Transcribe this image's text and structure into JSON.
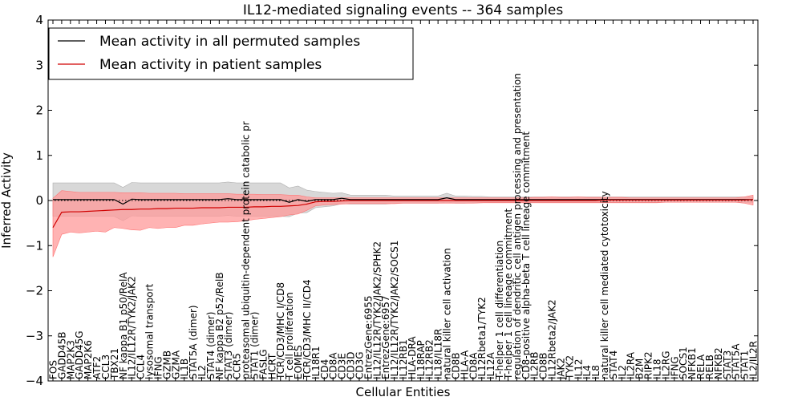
{
  "chart_data": {
    "type": "line",
    "title": "IL12-mediated signaling events -- 364 samples",
    "xlabel": "Cellular Entities",
    "ylabel": "Inferred Activity",
    "ylim": [
      -4,
      4
    ],
    "yticks": [
      -4,
      -3,
      -2,
      -1,
      0,
      1,
      2,
      3,
      4
    ],
    "legend_position": "top-left",
    "categories": [
      "FOS",
      "GADD45B",
      "MAP2K3",
      "GADD45G",
      "MAP2K6",
      "ATF2",
      "CCL3",
      "TBX21",
      "NF kappa B1 p50/RelA",
      "IL12/IL12R/TYK2/JAK2",
      "CCL4",
      "lysosomal transport",
      "IFNG",
      "GZMB",
      "GZMA",
      "IL1B",
      "STAT5A (dimer)",
      "IL2",
      "STAT4 (dimer)",
      "NF kappa B2 p52/RelB",
      "STAT3 (dimer)",
      "CCR5",
      "proteasomal ubiquitin-dependent protein catabolic pr",
      "STAT1 (dimer)",
      "FASLG",
      "HCRT",
      "TCR/CD3/MHC I/CD8",
      "T cell proliferation",
      "EOMES",
      "TCR/CD3/MHC II/CD4",
      "IL18R1",
      "CD4",
      "CD8A",
      "CD3E",
      "CD3D",
      "CD3G",
      "EntrezGene:6955",
      "IL12/IL12R/TYK2/JAK2/SPHK2",
      "EntrezGene:6957",
      "IL12/IL12R/TYK2/JAK2/SOCS1",
      "IL12RB1",
      "HLA-DRA",
      "IL18RAP",
      "IL12RB2",
      "IL18/IL18R",
      "natural killer cell activation",
      "CD8B",
      "HLA-A",
      "CD8A",
      "IL12Rbeta1/TYK2",
      "IL12A",
      "T-helper 1 cell differentiation",
      "T-helper 1 cell lineage commitment",
      "regulation of dendritic cell antigen processing and presentation",
      "CD8-positive alpha-beta T cell lineage commitment",
      "IL2RB",
      "CD8B",
      "IL12Rbeta2/JAK2",
      "JAK2",
      "TYK2",
      "IL12",
      "IL4",
      "IL8",
      "natural killer cell mediated cytotoxicity",
      "STAT4",
      "IL2",
      "IL2RA",
      "B2M",
      "RIPK2",
      "IL18",
      "IL2RG",
      "IFNG",
      "SOCS1",
      "NFKB1",
      "RELA",
      "RELB",
      "NFKB2",
      "STAT3",
      "STAT5A",
      "STAT1",
      "IL2/IL2R"
    ],
    "series": [
      {
        "name": "Mean activity in all permuted samples",
        "color": "#000000",
        "band_color": "#c8c8c8",
        "values": [
          0.02,
          0.02,
          0.02,
          0.02,
          0.02,
          0.02,
          0.02,
          0.02,
          -0.08,
          0.03,
          0.02,
          0.02,
          0.02,
          0.02,
          0.02,
          0.02,
          0.02,
          0.02,
          0.02,
          0.02,
          0.04,
          0.02,
          0.02,
          0.02,
          0.02,
          0.02,
          0.02,
          -0.04,
          0.02,
          -0.02,
          0.02,
          0.02,
          0.02,
          0.05,
          0.02,
          0.02,
          0.02,
          0.02,
          0.02,
          0.02,
          0.02,
          0.02,
          0.02,
          0.02,
          0.02,
          0.06,
          0.02,
          0.02,
          0.02,
          0.02,
          0.02,
          0.02,
          0.02,
          0.02,
          0.02,
          0.02,
          0.02,
          0.02,
          0.02,
          0.02,
          0.02,
          0.02,
          0.02,
          0.02,
          0.02,
          0.02,
          0.02,
          0.02,
          0.02,
          0.02,
          0.02,
          0.02,
          0.02,
          0.02,
          0.02,
          0.02,
          0.02,
          0.02,
          0.02,
          0.02,
          0.02
        ],
        "band_half_width": [
          0.37,
          0.37,
          0.37,
          0.37,
          0.37,
          0.37,
          0.37,
          0.37,
          0.37,
          0.37,
          0.37,
          0.37,
          0.37,
          0.37,
          0.37,
          0.37,
          0.37,
          0.37,
          0.37,
          0.37,
          0.37,
          0.37,
          0.37,
          0.37,
          0.37,
          0.37,
          0.37,
          0.32,
          0.3,
          0.25,
          0.18,
          0.16,
          0.14,
          0.12,
          0.1,
          0.1,
          0.1,
          0.1,
          0.1,
          0.08,
          0.08,
          0.08,
          0.08,
          0.08,
          0.08,
          0.1,
          0.08,
          0.08,
          0.07,
          0.07,
          0.06,
          0.06,
          0.06,
          0.06,
          0.06,
          0.06,
          0.06,
          0.06,
          0.06,
          0.06,
          0.06,
          0.06,
          0.06,
          0.06,
          0.06,
          0.06,
          0.06,
          0.06,
          0.06,
          0.06,
          0.06,
          0.06,
          0.06,
          0.06,
          0.06,
          0.06,
          0.06,
          0.06,
          0.06,
          0.06,
          0.06
        ]
      },
      {
        "name": "Mean activity in patient samples",
        "color": "#d00000",
        "band_color": "#ff9a9a",
        "values": [
          -0.6,
          -0.26,
          -0.25,
          -0.25,
          -0.24,
          -0.23,
          -0.22,
          -0.21,
          -0.2,
          -0.2,
          -0.19,
          -0.19,
          -0.18,
          -0.18,
          -0.17,
          -0.17,
          -0.17,
          -0.16,
          -0.16,
          -0.16,
          -0.15,
          -0.15,
          -0.15,
          -0.14,
          -0.14,
          -0.13,
          -0.13,
          -0.12,
          -0.11,
          -0.08,
          -0.03,
          -0.02,
          -0.02,
          -0.01,
          0.0,
          0.0,
          0.0,
          0.0,
          0.0,
          0.0,
          0.0,
          0.0,
          0.0,
          0.0,
          0.0,
          0.0,
          0.0,
          0.0,
          0.0,
          0.0,
          0.0,
          0.0,
          0.0,
          0.0,
          0.0,
          0.0,
          0.0,
          0.0,
          0.0,
          0.0,
          0.0,
          0.0,
          0.0,
          0.01,
          0.01,
          0.01,
          0.01,
          0.01,
          0.01,
          0.01,
          0.01,
          0.01,
          0.01,
          0.01,
          0.01,
          0.01,
          0.01,
          0.01,
          0.01,
          0.01,
          0.02
        ],
        "band_lower": [
          -1.25,
          -0.75,
          -0.7,
          -0.72,
          -0.7,
          -0.68,
          -0.7,
          -0.6,
          -0.62,
          -0.65,
          -0.66,
          -0.6,
          -0.62,
          -0.6,
          -0.6,
          -0.55,
          -0.55,
          -0.52,
          -0.5,
          -0.48,
          -0.48,
          -0.47,
          -0.45,
          -0.42,
          -0.4,
          -0.38,
          -0.36,
          -0.32,
          -0.3,
          -0.22,
          -0.12,
          -0.1,
          -0.09,
          -0.08,
          -0.07,
          -0.07,
          -0.07,
          -0.07,
          -0.07,
          -0.07,
          -0.06,
          -0.06,
          -0.06,
          -0.06,
          -0.06,
          -0.06,
          -0.06,
          -0.06,
          -0.06,
          -0.05,
          -0.05,
          -0.05,
          -0.05,
          -0.05,
          -0.05,
          -0.05,
          -0.05,
          -0.05,
          -0.05,
          -0.05,
          -0.05,
          -0.05,
          -0.05,
          -0.05,
          -0.05,
          -0.05,
          -0.05,
          -0.05,
          -0.05,
          -0.05,
          -0.04,
          -0.04,
          -0.04,
          -0.04,
          -0.04,
          -0.04,
          -0.04,
          -0.04,
          -0.04,
          -0.06,
          -0.1
        ],
        "band_upper": [
          0.05,
          0.22,
          0.2,
          0.18,
          0.18,
          0.18,
          0.18,
          0.18,
          0.17,
          0.17,
          0.17,
          0.16,
          0.16,
          0.16,
          0.16,
          0.15,
          0.15,
          0.15,
          0.15,
          0.15,
          0.15,
          0.14,
          0.14,
          0.14,
          0.13,
          0.13,
          0.13,
          0.12,
          0.12,
          0.08,
          0.06,
          0.06,
          0.06,
          0.06,
          0.06,
          0.06,
          0.06,
          0.06,
          0.06,
          0.06,
          0.06,
          0.06,
          0.06,
          0.06,
          0.06,
          0.06,
          0.06,
          0.06,
          0.06,
          0.06,
          0.06,
          0.06,
          0.06,
          0.06,
          0.06,
          0.07,
          0.07,
          0.08,
          0.07,
          0.07,
          0.08,
          0.07,
          0.07,
          0.07,
          0.07,
          0.07,
          0.06,
          0.06,
          0.06,
          0.06,
          0.06,
          0.06,
          0.06,
          0.06,
          0.06,
          0.06,
          0.06,
          0.06,
          0.06,
          0.08,
          0.12
        ]
      }
    ]
  }
}
